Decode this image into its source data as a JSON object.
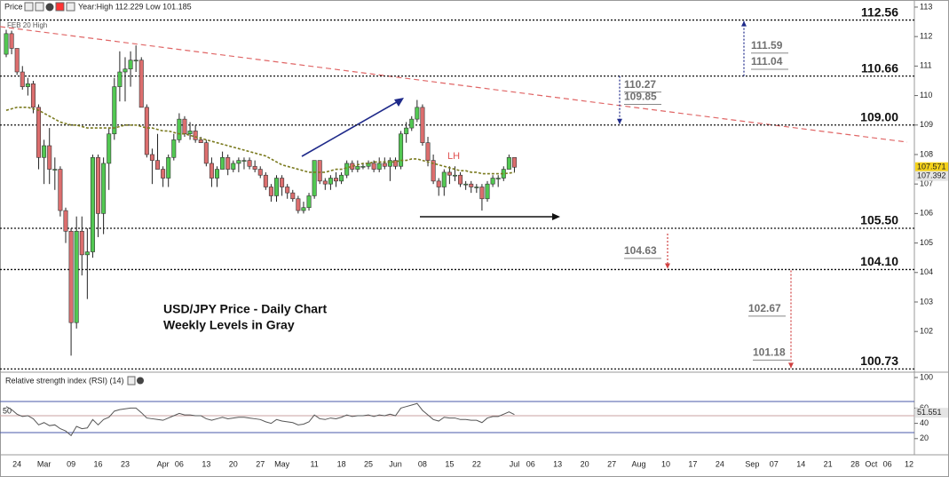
{
  "toolbar": {
    "label": "Price",
    "year_range": "Year:High 112.229 Low 101.185"
  },
  "chart_data": [
    {
      "type": "candlestick",
      "title": "USD/JPY Price - Daily Chart",
      "subtitle": "Weekly Levels in Gray",
      "colors": {
        "up": "#52c852",
        "down": "#dc6e6e",
        "ma": "#7a7a1e",
        "trend": "#e06666",
        "arrow": "#1f2a8a"
      },
      "ylim": [
        100.68,
        113.24
      ],
      "yticks": [
        102,
        103,
        104,
        105,
        106,
        107,
        108,
        109,
        110,
        111,
        112,
        113
      ],
      "levels": [
        112.56,
        110.66,
        {
          "value": 109,
          "label": "109.00"
        },
        {
          "value": 105.5,
          "label": "105.50"
        },
        {
          "value": 104.1,
          "label": "104.10"
        },
        100.73
      ],
      "weekly_levels": [
        111.59,
        111.04,
        110.27,
        109.85,
        104.63,
        102.67,
        101.18
      ],
      "annotations": [
        "FEB 20 High",
        "LH"
      ],
      "price_tags": [
        107.571,
        107.392
      ],
      "x_labels": [
        "24",
        "Mar",
        "09",
        "16",
        "23",
        "Apr",
        "06",
        "13",
        "20",
        "27",
        "May",
        "11",
        "18",
        "25",
        "Jun",
        "08",
        "15",
        "22",
        "Jul",
        "06",
        "13",
        "20",
        "27",
        "Aug",
        "10",
        "17",
        "24",
        "Sep",
        "07",
        "14",
        "21",
        "28",
        "Oct",
        "06",
        "12"
      ],
      "candles": [
        [
          111.4,
          112.23,
          111.3,
          112.1
        ],
        [
          112.1,
          112.2,
          111.4,
          111.6
        ],
        [
          111.6,
          111.6,
          110.7,
          110.8
        ],
        [
          110.8,
          111.0,
          110.2,
          110.3
        ],
        [
          110.3,
          110.6,
          110.0,
          110.4
        ],
        [
          110.4,
          110.5,
          109.4,
          109.6
        ],
        [
          109.6,
          109.7,
          107.5,
          107.9
        ],
        [
          107.9,
          108.5,
          107.0,
          108.3
        ],
        [
          108.3,
          108.9,
          107.0,
          107.5
        ],
        [
          107.5,
          107.9,
          106.8,
          107.5
        ],
        [
          107.5,
          107.6,
          105.9,
          106.1
        ],
        [
          106.1,
          106.2,
          105.0,
          105.4
        ],
        [
          105.4,
          105.5,
          101.18,
          102.3
        ],
        [
          102.3,
          105.9,
          102.1,
          105.4
        ],
        [
          105.4,
          105.9,
          103.9,
          104.6
        ],
        [
          104.6,
          105.5,
          103.1,
          104.7
        ],
        [
          104.7,
          108.0,
          104.5,
          107.9
        ],
        [
          107.9,
          108.0,
          105.2,
          106.0
        ],
        [
          106.0,
          107.9,
          105.3,
          107.7
        ],
        [
          107.7,
          108.9,
          106.8,
          108.7
        ],
        [
          108.7,
          110.6,
          108.5,
          110.3
        ],
        [
          110.3,
          111.5,
          109.8,
          110.8
        ],
        [
          110.8,
          111.3,
          109.8,
          110.9
        ],
        [
          110.9,
          111.5,
          110.3,
          111.2
        ],
        [
          111.2,
          111.7,
          110.8,
          111.2
        ],
        [
          111.2,
          111.3,
          109.6,
          109.6
        ],
        [
          109.6,
          109.7,
          107.9,
          108.0
        ],
        [
          108.0,
          108.2,
          107.0,
          107.8
        ],
        [
          107.8,
          108.7,
          107.5,
          107.5
        ],
        [
          107.5,
          107.6,
          106.9,
          107.2
        ],
        [
          107.2,
          108.0,
          106.9,
          107.9
        ],
        [
          107.9,
          108.7,
          107.8,
          108.5
        ],
        [
          108.5,
          109.4,
          108.4,
          109.2
        ],
        [
          109.2,
          109.3,
          108.6,
          108.7
        ],
        [
          108.7,
          109.1,
          108.5,
          108.8
        ],
        [
          108.8,
          109.0,
          108.4,
          108.5
        ],
        [
          108.5,
          108.6,
          108.4,
          108.4
        ],
        [
          108.4,
          108.5,
          107.6,
          107.7
        ],
        [
          107.7,
          107.9,
          106.9,
          107.2
        ],
        [
          107.2,
          107.6,
          106.9,
          107.5
        ],
        [
          107.5,
          108.1,
          107.5,
          107.9
        ],
        [
          107.9,
          108.0,
          107.3,
          107.5
        ],
        [
          107.5,
          107.8,
          107.4,
          107.7
        ],
        [
          107.7,
          107.9,
          107.4,
          107.8
        ],
        [
          107.8,
          107.9,
          107.5,
          107.8
        ],
        [
          107.8,
          107.9,
          107.5,
          107.6
        ],
        [
          107.6,
          107.8,
          107.4,
          107.5
        ],
        [
          107.5,
          107.6,
          107.2,
          107.3
        ],
        [
          107.3,
          107.4,
          106.8,
          106.9
        ],
        [
          106.9,
          107.0,
          106.4,
          106.6
        ],
        [
          106.6,
          107.3,
          106.4,
          107.2
        ],
        [
          107.2,
          107.3,
          106.6,
          106.9
        ],
        [
          106.9,
          107.0,
          106.5,
          106.7
        ],
        [
          106.7,
          106.8,
          106.4,
          106.5
        ],
        [
          106.5,
          106.6,
          106.0,
          106.1
        ],
        [
          106.1,
          106.4,
          106.0,
          106.2
        ],
        [
          106.2,
          106.7,
          106.1,
          106.6
        ],
        [
          106.6,
          107.8,
          106.5,
          107.8
        ],
        [
          107.8,
          107.8,
          107.0,
          107.1
        ],
        [
          107.1,
          107.2,
          106.8,
          107.0
        ],
        [
          107.0,
          107.3,
          106.8,
          107.2
        ],
        [
          107.2,
          107.4,
          106.9,
          107.1
        ],
        [
          107.1,
          107.4,
          107.0,
          107.3
        ],
        [
          107.3,
          107.8,
          107.2,
          107.7
        ],
        [
          107.7,
          107.8,
          107.4,
          107.5
        ],
        [
          107.5,
          107.8,
          107.4,
          107.6
        ],
        [
          107.6,
          107.7,
          107.5,
          107.6
        ],
        [
          107.6,
          107.8,
          107.5,
          107.7
        ],
        [
          107.7,
          107.8,
          107.4,
          107.5
        ],
        [
          107.5,
          107.9,
          107.4,
          107.7
        ],
        [
          107.7,
          107.9,
          107.5,
          107.6
        ],
        [
          107.6,
          107.9,
          107.1,
          107.8
        ],
        [
          107.8,
          107.9,
          107.5,
          107.6
        ],
        [
          107.6,
          108.8,
          107.5,
          108.7
        ],
        [
          108.7,
          109.1,
          108.4,
          108.9
        ],
        [
          108.9,
          109.3,
          108.8,
          109.2
        ],
        [
          109.2,
          109.85,
          109.1,
          109.6
        ],
        [
          109.6,
          109.7,
          108.3,
          108.4
        ],
        [
          108.4,
          108.6,
          107.6,
          107.8
        ],
        [
          107.8,
          108.0,
          107.0,
          107.1
        ],
        [
          107.1,
          107.2,
          106.6,
          106.9
        ],
        [
          106.9,
          107.5,
          106.6,
          107.4
        ],
        [
          107.4,
          107.6,
          107.0,
          107.3
        ],
        [
          107.3,
          107.6,
          107.1,
          107.3
        ],
        [
          107.3,
          107.4,
          106.9,
          107.0
        ],
        [
          107.0,
          107.1,
          106.8,
          107.0
        ],
        [
          107.0,
          107.1,
          106.7,
          106.9
        ],
        [
          106.9,
          107.0,
          106.7,
          106.9
        ],
        [
          106.9,
          107.0,
          106.1,
          106.5
        ],
        [
          106.5,
          107.1,
          106.4,
          107.0
        ],
        [
          107.0,
          107.3,
          106.9,
          107.2
        ],
        [
          107.2,
          107.3,
          106.9,
          107.2
        ],
        [
          107.2,
          107.6,
          107.1,
          107.5
        ],
        [
          107.5,
          108.0,
          107.5,
          107.9
        ],
        [
          107.9,
          107.9,
          107.4,
          107.57
        ]
      ],
      "ma": {
        "values": [
          109.5,
          109.55,
          109.6,
          109.6,
          109.6,
          109.55,
          109.5,
          109.4,
          109.3,
          109.2,
          109.1,
          109.05,
          109.0,
          109.0,
          108.95,
          108.9,
          108.9,
          108.9,
          108.9,
          108.9,
          108.9,
          108.95,
          109.0,
          109.0,
          109.0,
          108.95,
          108.9,
          108.9,
          108.85,
          108.8,
          108.8,
          108.75,
          108.7,
          108.7,
          108.65,
          108.6,
          108.55,
          108.5,
          108.45,
          108.4,
          108.35,
          108.3,
          108.25,
          108.2,
          108.15,
          108.1,
          108.05,
          108.0,
          107.95,
          107.85,
          107.75,
          107.65,
          107.6,
          107.55,
          107.5,
          107.45,
          107.4,
          107.4,
          107.4,
          107.4,
          107.45,
          107.5,
          107.5,
          107.55,
          107.6,
          107.65,
          107.7,
          107.7,
          107.75,
          107.75,
          107.75,
          107.75,
          107.75,
          107.8,
          107.8,
          107.85,
          107.85,
          107.8,
          107.75,
          107.7,
          107.65,
          107.6,
          107.55,
          107.5,
          107.45,
          107.45,
          107.4,
          107.4,
          107.35,
          107.35,
          107.35,
          107.35,
          107.35,
          107.37,
          107.392
        ]
      }
    },
    {
      "type": "line",
      "title": "Relative strength index (RSI) (14)",
      "color": "#555555",
      "ylim": [
        0,
        100
      ],
      "yticks": [
        20,
        40,
        60,
        100
      ],
      "mid_label": 50,
      "value_tag": 51.551,
      "values": [
        62,
        58,
        52,
        49,
        50,
        46,
        38,
        41,
        37,
        38,
        33,
        30,
        24,
        36,
        33,
        34,
        45,
        38,
        45,
        48,
        56,
        58,
        59,
        60,
        60,
        54,
        47,
        46,
        45,
        44,
        47,
        50,
        53,
        51,
        51,
        50,
        50,
        46,
        44,
        46,
        48,
        46,
        47,
        48,
        48,
        47,
        46,
        45,
        42,
        40,
        45,
        43,
        42,
        41,
        38,
        39,
        42,
        51,
        46,
        45,
        47,
        46,
        48,
        51,
        49,
        50,
        50,
        51,
        49,
        51,
        50,
        52,
        50,
        60,
        62,
        64,
        66,
        57,
        51,
        45,
        43,
        48,
        47,
        47,
        45,
        45,
        44,
        44,
        41,
        47,
        49,
        49,
        52,
        55,
        51.551
      ]
    }
  ]
}
